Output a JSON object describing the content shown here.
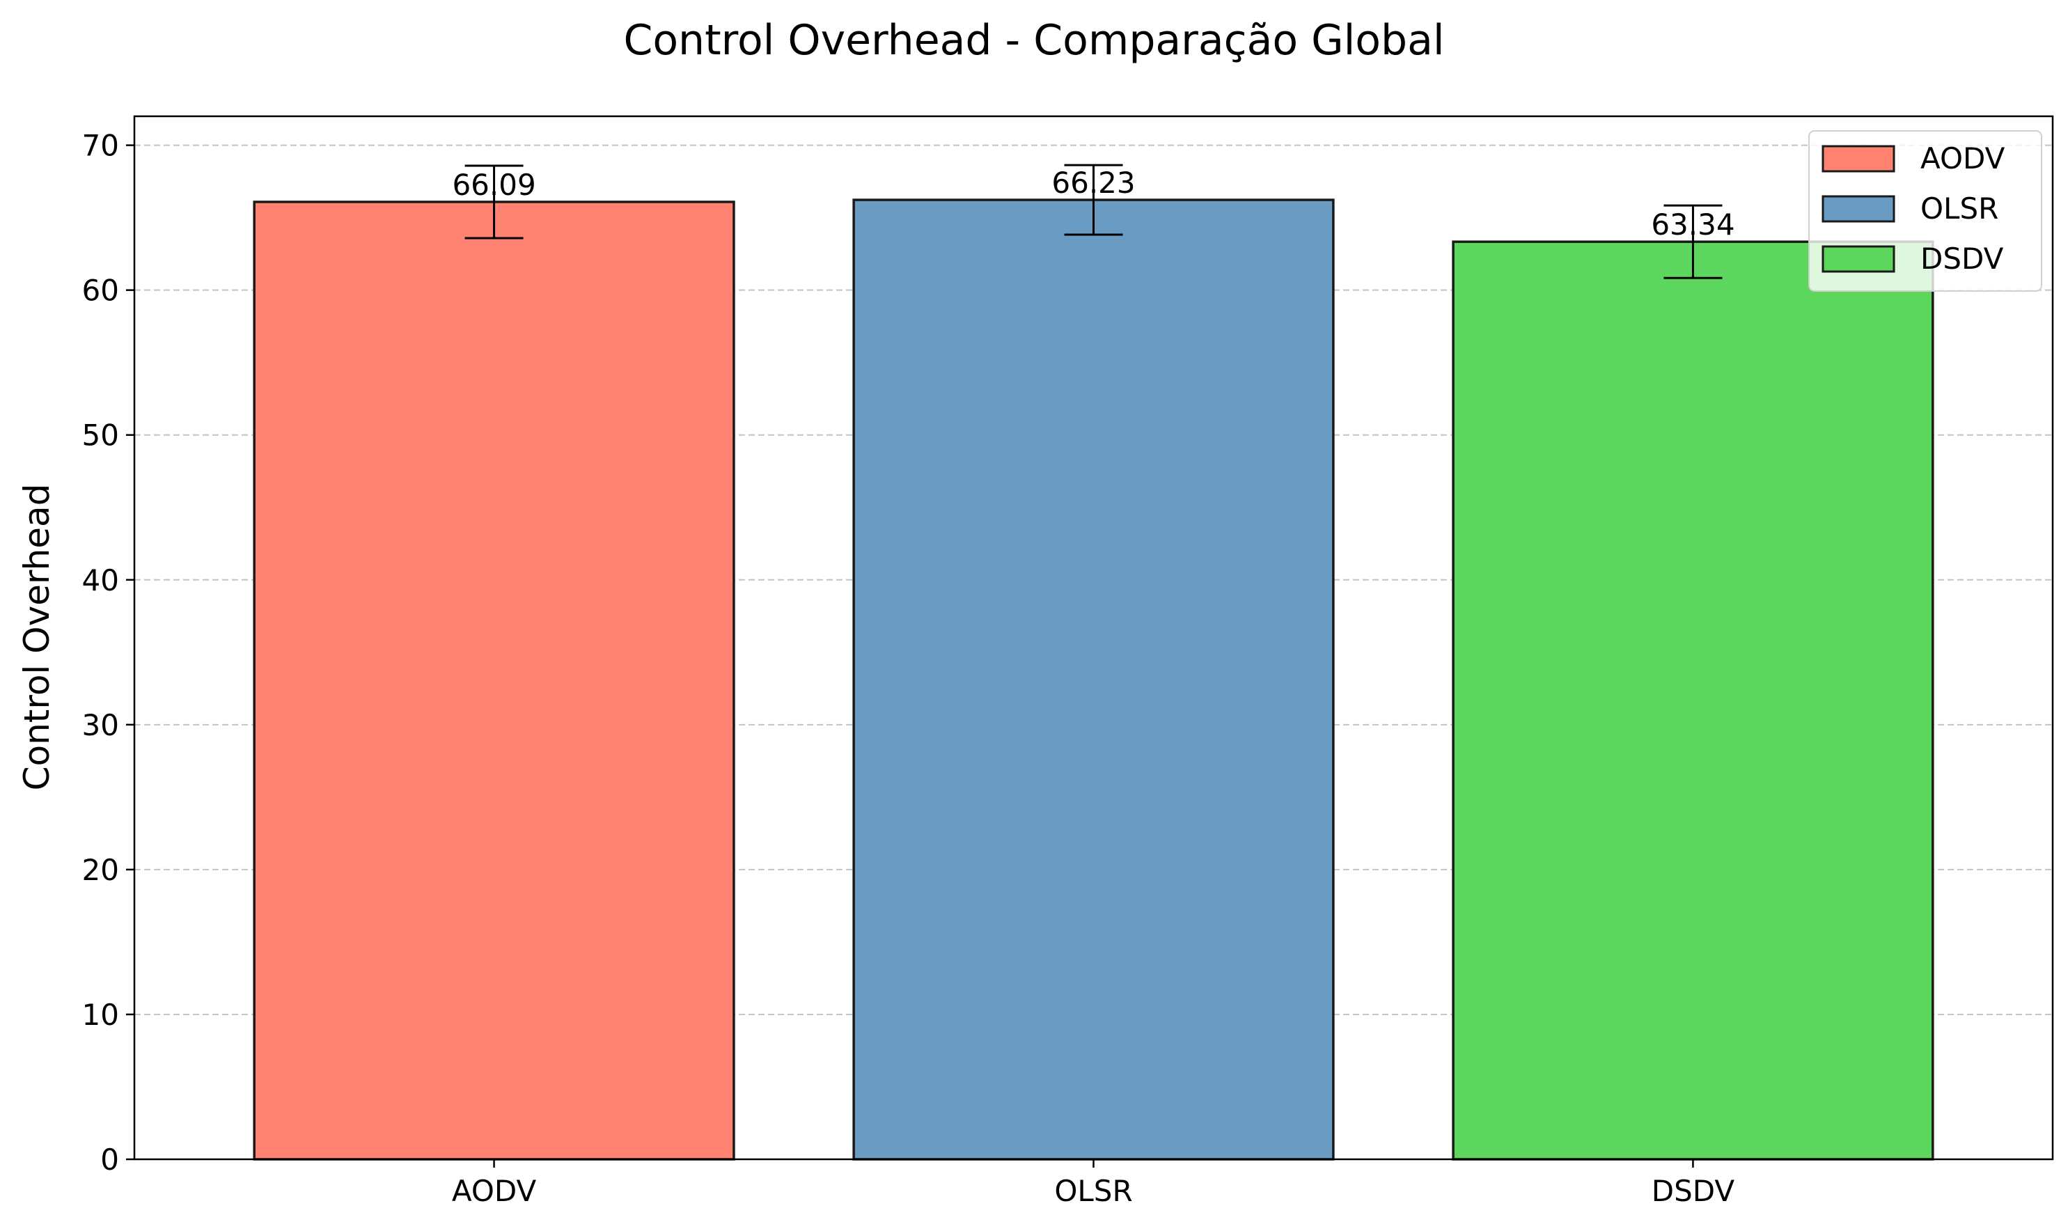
{
  "chart_data": {
    "type": "bar",
    "title": "Control Overhead - Comparação Global",
    "xlabel": "",
    "ylabel": "Control Overhead",
    "categories": [
      "AODV",
      "OLSR",
      "DSDV"
    ],
    "values": [
      66.09,
      66.23,
      63.34
    ],
    "value_labels": [
      "66.09",
      "66.23",
      "63.34"
    ],
    "error": [
      2.5,
      2.4,
      2.5
    ],
    "colors": [
      "#ff8370",
      "#6a9bc3",
      "#5cd65c"
    ],
    "edge_color": "#1a1a1a",
    "ylim": [
      0,
      72
    ],
    "yticks": [
      0,
      10,
      20,
      30,
      40,
      50,
      60,
      70
    ],
    "ytick_labels": [
      "0",
      "10",
      "20",
      "30",
      "40",
      "50",
      "60",
      "70"
    ],
    "grid": true,
    "grid_axis": "y",
    "grid_style": "dashed",
    "legend": {
      "position": "top-right",
      "entries": [
        "AODV",
        "OLSR",
        "DSDV"
      ]
    }
  }
}
